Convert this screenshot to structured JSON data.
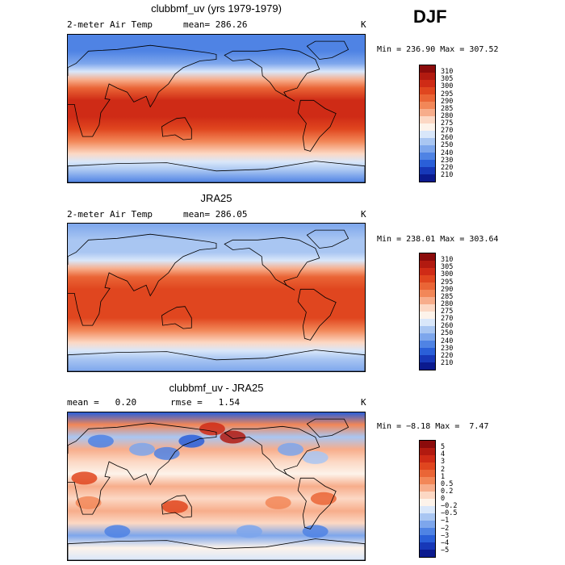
{
  "season": "DJF",
  "panels": [
    {
      "title": "clubbmf_uv (yrs 1979-1979)",
      "left_label": "2-meter Air Temp",
      "mean_label": "mean= 286.26",
      "units": "K",
      "minmax": "Min = 236.90 Max = 307.52",
      "colorbar": {
        "labels": [
          "310",
          "305",
          "300",
          "295",
          "290",
          "285",
          "280",
          "275",
          "270",
          "260",
          "250",
          "240",
          "230",
          "220",
          "210"
        ],
        "colors": [
          "#8b0b0b",
          "#b21a10",
          "#cf2b16",
          "#e0461f",
          "#ea6536",
          "#f28758",
          "#f7ad8b",
          "#fcd8c4",
          "#fdf3ea",
          "#d9e7fa",
          "#a9c6f2",
          "#7da6ec",
          "#4f83e4",
          "#2a5fd8",
          "#1738b8",
          "#0b1a8e"
        ]
      },
      "map": {
        "lat_profile": [
          {
            "lat": 90,
            "color": "#4f83e4"
          },
          {
            "lat": 70,
            "color": "#4f83e4"
          },
          {
            "lat": 55,
            "color": "#7da6ec"
          },
          {
            "lat": 45,
            "color": "#d9e7fa"
          },
          {
            "lat": 35,
            "color": "#f7ad8b"
          },
          {
            "lat": 25,
            "color": "#ea6536"
          },
          {
            "lat": 10,
            "color": "#cf2b16"
          },
          {
            "lat": -10,
            "color": "#cf2b16"
          },
          {
            "lat": -25,
            "color": "#e0461f"
          },
          {
            "lat": -40,
            "color": "#f28758"
          },
          {
            "lat": -55,
            "color": "#fcd8c4"
          },
          {
            "lat": -65,
            "color": "#d9e7fa"
          },
          {
            "lat": -75,
            "color": "#a9c6f2"
          },
          {
            "lat": -90,
            "color": "#4f83e4"
          }
        ]
      }
    },
    {
      "title": "JRA25",
      "left_label": "2-meter Air Temp",
      "mean_label": "mean= 286.05",
      "units": "K",
      "minmax": "Min = 238.01 Max = 303.64",
      "colorbar": {
        "labels": [
          "310",
          "305",
          "300",
          "295",
          "290",
          "285",
          "280",
          "275",
          "270",
          "260",
          "250",
          "240",
          "230",
          "220",
          "210"
        ],
        "colors": [
          "#8b0b0b",
          "#b21a10",
          "#cf2b16",
          "#e0461f",
          "#ea6536",
          "#f28758",
          "#f7ad8b",
          "#fcd8c4",
          "#fdf3ea",
          "#d9e7fa",
          "#a9c6f2",
          "#7da6ec",
          "#4f83e4",
          "#2a5fd8",
          "#1738b8",
          "#0b1a8e"
        ]
      },
      "map": {
        "lat_profile": [
          {
            "lat": 90,
            "color": "#7da6ec"
          },
          {
            "lat": 70,
            "color": "#a9c6f2"
          },
          {
            "lat": 55,
            "color": "#a9c6f2"
          },
          {
            "lat": 45,
            "color": "#d9e7fa"
          },
          {
            "lat": 35,
            "color": "#f7ad8b"
          },
          {
            "lat": 25,
            "color": "#ea6536"
          },
          {
            "lat": 10,
            "color": "#e0461f"
          },
          {
            "lat": -10,
            "color": "#e0461f"
          },
          {
            "lat": -25,
            "color": "#e0461f"
          },
          {
            "lat": -40,
            "color": "#f28758"
          },
          {
            "lat": -55,
            "color": "#fcd8c4"
          },
          {
            "lat": -65,
            "color": "#d9e7fa"
          },
          {
            "lat": -75,
            "color": "#a9c6f2"
          },
          {
            "lat": -90,
            "color": "#7da6ec"
          }
        ]
      }
    },
    {
      "title": "clubbmf_uv - JRA25",
      "mean_label": "mean =   0.20",
      "rmse_label": "rmse =   1.54",
      "units": "K",
      "minmax": "Min = −8.18 Max =  7.47",
      "colorbar": {
        "labels": [
          "5",
          "4",
          "3",
          "2",
          "1",
          "0.5",
          "0.2",
          "0",
          "−0.2",
          "−0.5",
          "−1",
          "−2",
          "−3",
          "−4",
          "−5"
        ],
        "colors": [
          "#8b0b0b",
          "#b21a10",
          "#cf2b16",
          "#e0461f",
          "#ea6536",
          "#f28758",
          "#f7ad8b",
          "#fcd8c4",
          "#fdf3ea",
          "#d9e7fa",
          "#a9c6f2",
          "#7da6ec",
          "#4f83e4",
          "#2a5fd8",
          "#1738b8",
          "#0b1a8e"
        ]
      },
      "map": {
        "lat_profile": [
          {
            "lat": 90,
            "color": "#2a5fd8"
          },
          {
            "lat": 75,
            "color": "#f28758"
          },
          {
            "lat": 60,
            "color": "#a9c6f2"
          },
          {
            "lat": 45,
            "color": "#f7ad8b"
          },
          {
            "lat": 30,
            "color": "#fcd8c4"
          },
          {
            "lat": 15,
            "color": "#fdf3ea"
          },
          {
            "lat": 0,
            "color": "#f7ad8b"
          },
          {
            "lat": -15,
            "color": "#fcd8c4"
          },
          {
            "lat": -30,
            "color": "#f7ad8b"
          },
          {
            "lat": -45,
            "color": "#fcd8c4"
          },
          {
            "lat": -60,
            "color": "#7da6ec"
          },
          {
            "lat": -75,
            "color": "#fdf3ea"
          },
          {
            "lat": -90,
            "color": "#d9e7fa"
          }
        ]
      }
    }
  ]
}
